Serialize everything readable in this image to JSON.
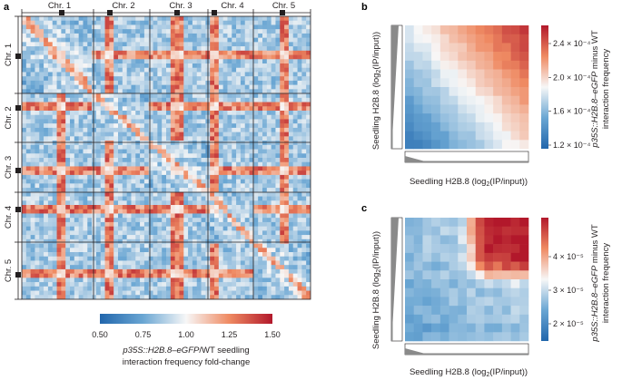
{
  "panel_a": {
    "letter": "a",
    "chromosomes": [
      "Chr. 1",
      "Chr. 2",
      "Chr. 3",
      "Chr. 4",
      "Chr. 5"
    ],
    "colorbar": {
      "ticks": [
        "0.50",
        "0.75",
        "1.00",
        "1.25",
        "1.50"
      ],
      "caption_italic": "p35S::H2B.8–eGFP",
      "caption_rest": "/WT seedling",
      "caption_line2": "interaction frequency fold-change"
    }
  },
  "panel_b": {
    "letter": "b",
    "xlabel_pre": "Seedling H2B.8 (log",
    "xlabel_sub": "2",
    "xlabel_post": "(IP/input))",
    "ylabel_pre": "Seedling H2B.8 (log",
    "ylabel_sub": "2",
    "ylabel_post": "(IP/input))",
    "colorbar_ticks": [
      "2.4 × 10⁻⁴",
      "2.0 × 10⁻⁴",
      "1.6 × 10⁻⁴",
      "1.2 × 10⁻⁴"
    ],
    "cbar_label_italic": "p35S::H2B.8–eGFP",
    "cbar_label_rest": " minus WT",
    "cbar_label_line2": "interaction frequency"
  },
  "panel_c": {
    "letter": "c",
    "xlabel_pre": "Seedling H2B.8 (log",
    "xlabel_sub": "2",
    "xlabel_post": "(IP/input))",
    "ylabel_pre": "Seedling H2B.8 (log",
    "ylabel_sub": "2",
    "ylabel_post": "(IP/input))",
    "colorbar_ticks": [
      "4 × 10⁻⁵",
      "3 × 10⁻⁵",
      "2 × 10⁻⁵"
    ],
    "cbar_label_italic": "p35S::H2B.8–eGFP",
    "cbar_label_rest": " minus WT",
    "cbar_label_line2": "interaction frequency"
  },
  "colors": {
    "blue": "#2166ac",
    "white": "#f7f7f7",
    "red": "#b2182b",
    "ink": "#231f20",
    "marginal_gray": "#8a8a8a"
  }
}
